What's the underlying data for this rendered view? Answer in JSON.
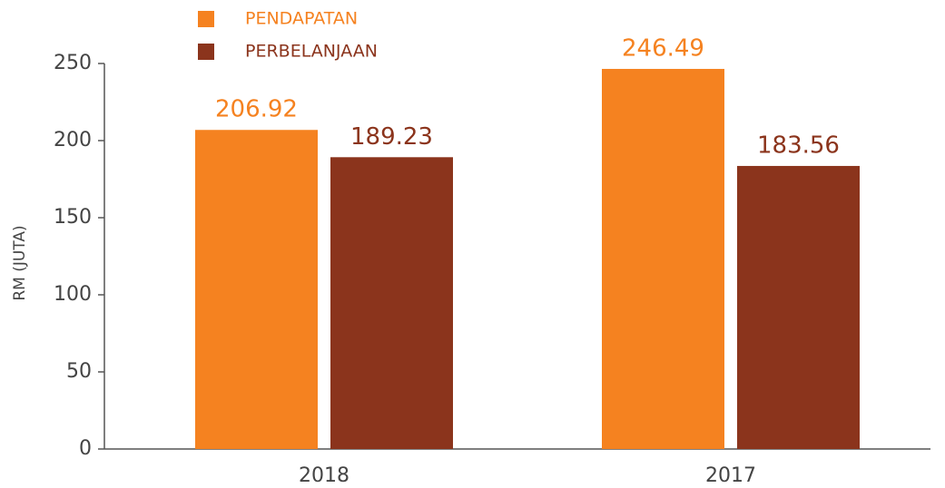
{
  "chart_data": {
    "type": "bar",
    "categories": [
      "2018",
      "2017"
    ],
    "series": [
      {
        "name": "PENDAPATAN",
        "color": "#f58220",
        "values": [
          206.92,
          246.49
        ]
      },
      {
        "name": "PERBELANJAAN",
        "color": "#8b341c",
        "values": [
          189.23,
          183.56
        ]
      }
    ],
    "ylabel": "RM (JUTA)",
    "ylim": [
      0,
      250
    ],
    "yticks": [
      0,
      50,
      100,
      150,
      200,
      250
    ]
  }
}
